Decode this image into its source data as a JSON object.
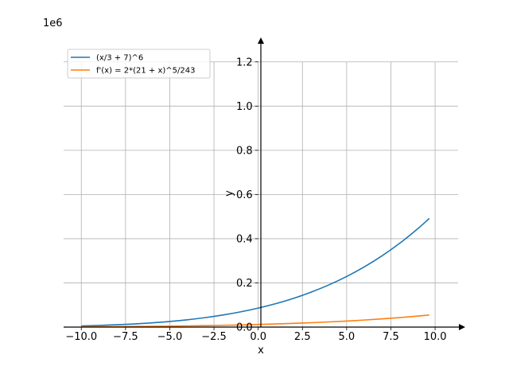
{
  "chart_data": {
    "type": "line",
    "xlabel": "x",
    "ylabel": "y",
    "y_offset_label": "1e6",
    "y_multiplier": 1000000,
    "xlim": [
      -11.0,
      11.3
    ],
    "ylim": [
      0.0,
      1.3
    ],
    "grid": true,
    "legend_placement": "top-left",
    "x_ticks": [
      -10.0,
      -7.5,
      -5.0,
      -2.5,
      0.0,
      2.5,
      5.0,
      7.5,
      10.0
    ],
    "x_tick_labels": [
      "−10.0",
      "−7.5",
      "−5.0",
      "−2.5",
      "0.0",
      "2.5",
      "5.0",
      "7.5",
      "10.0"
    ],
    "y_ticks": [
      0.0,
      0.2,
      0.4,
      0.6,
      0.8,
      1.0,
      1.2
    ],
    "y_tick_labels": [
      "0.0",
      "0.2",
      "0.4",
      "0.6",
      "0.8",
      "1.0",
      "1.2"
    ],
    "x": [
      -10,
      -9,
      -8,
      -7,
      -6,
      -5,
      -4,
      -3,
      -2,
      -1,
      0,
      1,
      2,
      3,
      4,
      5,
      6,
      7,
      8,
      9,
      9.67
    ],
    "series": [
      {
        "name": "(x/3 + 7)^6",
        "color": "#1f77b4",
        "values": [
          5314.41,
          7529.54,
          10460.35,
          14281.35,
          19191.36,
          25412.73,
          33194.62,
          42812.28,
          54571.32,
          68806.2,
          85883.87,
          106202.03,
          130189.18,
          158305.49,
          191044.69,
          228934.01,
          272536.14,
          322449.6,
          379311.62,
          443800.61,
          491578.38
        ]
      },
      {
        "name": "f'(x) = 2*(21 + x)^5/243",
        "color": "#ff7f0e",
        "values": [
          1325.53,
          1716.09,
          2197.68,
          2787.43,
          3504.04,
          4368.0,
          5401.85,
          6630.43,
          8081.09,
          9783.99,
          11772.28,
          14082.42,
          16754.38,
          19831.88,
          23362.67,
          27398.73,
          31996.57,
          37217.46,
          43127.71,
          49798.94,
          54772.14
        ]
      }
    ]
  }
}
